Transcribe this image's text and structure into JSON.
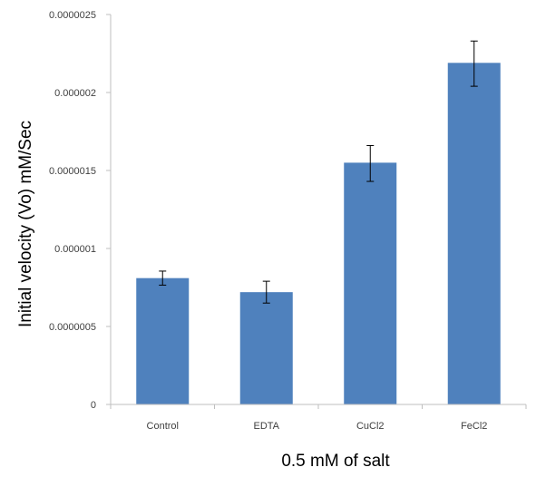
{
  "chart_data": {
    "type": "bar",
    "title": "",
    "xlabel": "0.5 mM of salt",
    "ylabel": "Initial velocity (Vo) mM/Sec",
    "categories": [
      "Control",
      "EDTA",
      "CuCl2",
      "FeCl2"
    ],
    "values": [
      8.1e-07,
      7.2e-07,
      1.55e-06,
      2.19e-06
    ],
    "error_low": [
      7.65e-07,
      6.5e-07,
      1.43e-06,
      2.04e-06
    ],
    "error_high": [
      8.55e-07,
      7.9e-07,
      1.66e-06,
      2.33e-06
    ],
    "ylim": [
      0,
      2.5e-06
    ],
    "yticks": [
      0,
      5e-07,
      1e-06,
      1.5e-06,
      2e-06,
      2.5e-06
    ],
    "ytick_labels": [
      "0",
      "0.0000005",
      "0.000001",
      "0.0000015",
      "0.000002",
      "0.0000025"
    ],
    "grid": false,
    "bar_color": "#4f81bd",
    "error_color": "#000000",
    "axis_color": "#bfbfbf"
  }
}
